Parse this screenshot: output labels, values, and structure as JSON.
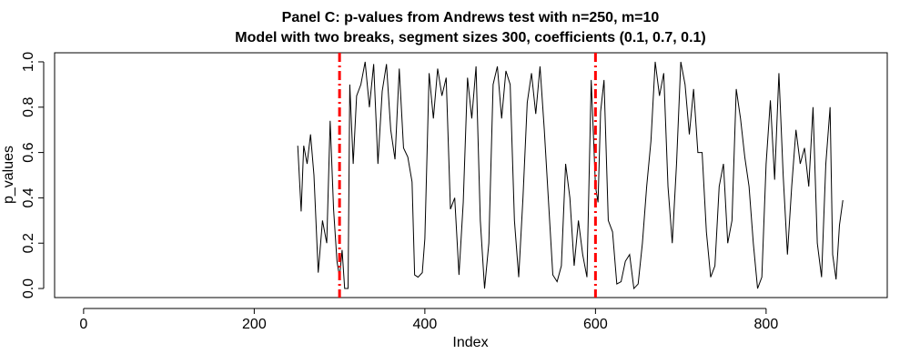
{
  "chart_data": {
    "type": "line",
    "title": "Panel C: p-values from Andrews test with n=250, m=10",
    "subtitle": "Model with two breaks, segment sizes 300, coefficients (0.1, 0.7, 0.1)",
    "x_label": "Index",
    "y_label": "p_values",
    "xlim": [
      -34,
      942
    ],
    "ylim": [
      -0.04,
      1.04
    ],
    "xticks": [
      0,
      200,
      400,
      600,
      800
    ],
    "yticks": [
      {
        "value": 0,
        "label": "0.0"
      },
      0.2,
      0.4,
      0.6,
      0.8,
      {
        "value": 1,
        "label": "1.0"
      }
    ],
    "vlines": [
      300,
      600
    ],
    "vline_color": "#ff0000",
    "series": [
      {
        "color": "#000000",
        "x": [
          251,
          255,
          258,
          262,
          266,
          270,
          275,
          280,
          285,
          289,
          293,
          297,
          300,
          303,
          306,
          310,
          312,
          316,
          320,
          325,
          330,
          335,
          340,
          345,
          350,
          355,
          360,
          365,
          370,
          375,
          380,
          385,
          388,
          392,
          397,
          400,
          405,
          410,
          415,
          420,
          425,
          430,
          435,
          440,
          445,
          450,
          455,
          460,
          465,
          470,
          475,
          480,
          485,
          490,
          495,
          500,
          505,
          510,
          515,
          520,
          525,
          530,
          535,
          540,
          545,
          550,
          555,
          560,
          565,
          570,
          575,
          580,
          585,
          590,
          595,
          600,
          603,
          606,
          610,
          615,
          620,
          625,
          630,
          635,
          640,
          645,
          650,
          655,
          660,
          665,
          670,
          675,
          680,
          685,
          690,
          695,
          700,
          705,
          710,
          715,
          720,
          725,
          730,
          735,
          740,
          745,
          750,
          755,
          760,
          765,
          770,
          775,
          780,
          785,
          790,
          795,
          800,
          805,
          810,
          815,
          820,
          825,
          830,
          835,
          840,
          845,
          850,
          855,
          860,
          865,
          870,
          875,
          878,
          882,
          886,
          890
        ],
        "values": [
          0.63,
          0.34,
          0.63,
          0.55,
          0.68,
          0.5,
          0.07,
          0.3,
          0.2,
          0.74,
          0.35,
          0.12,
          0.05,
          0.17,
          0.0,
          0.0,
          0.9,
          0.55,
          0.85,
          0.9,
          1.0,
          0.8,
          0.99,
          0.55,
          0.87,
          0.99,
          0.7,
          0.57,
          0.97,
          0.62,
          0.58,
          0.47,
          0.06,
          0.05,
          0.07,
          0.22,
          0.95,
          0.75,
          0.97,
          0.85,
          0.93,
          0.35,
          0.4,
          0.06,
          0.38,
          0.93,
          0.75,
          0.98,
          0.3,
          0.0,
          0.2,
          0.9,
          0.98,
          0.75,
          0.96,
          0.9,
          0.3,
          0.05,
          0.4,
          0.82,
          0.95,
          0.77,
          0.98,
          0.7,
          0.38,
          0.06,
          0.03,
          0.1,
          0.55,
          0.4,
          0.1,
          0.3,
          0.15,
          0.05,
          0.92,
          0.45,
          0.38,
          0.78,
          0.92,
          0.3,
          0.25,
          0.02,
          0.03,
          0.12,
          0.15,
          0.0,
          0.02,
          0.2,
          0.45,
          0.65,
          1.0,
          0.85,
          0.95,
          0.45,
          0.2,
          0.55,
          1.0,
          0.9,
          0.68,
          0.88,
          0.6,
          0.6,
          0.25,
          0.05,
          0.1,
          0.45,
          0.55,
          0.2,
          0.3,
          0.88,
          0.75,
          0.58,
          0.45,
          0.2,
          0.0,
          0.05,
          0.55,
          0.83,
          0.48,
          0.95,
          0.5,
          0.15,
          0.45,
          0.7,
          0.55,
          0.62,
          0.45,
          0.8,
          0.2,
          0.05,
          0.55,
          0.8,
          0.15,
          0.04,
          0.28,
          0.39
        ]
      }
    ]
  }
}
